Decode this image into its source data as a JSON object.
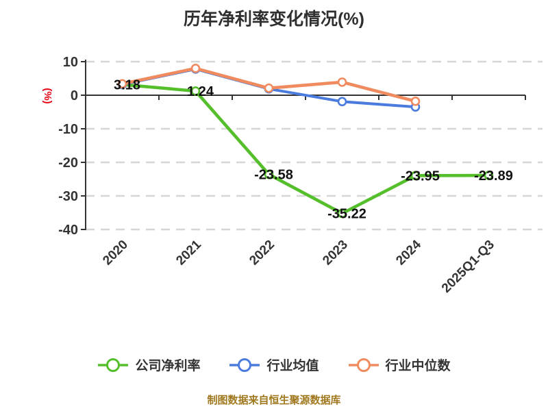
{
  "chart_data": {
    "type": "line",
    "title": "历年净利率变化情况(%)",
    "y_axis_name": "(%)",
    "source_note": "制图数据来自恒生聚源数据库",
    "categories": [
      "2020",
      "2021",
      "2022",
      "2023",
      "2024",
      "2025Q1-Q3"
    ],
    "series": [
      {
        "id": "company-net-margin",
        "name": "公司净利率",
        "color": "#55be2b",
        "line_width": 4.6,
        "values": [
          3.18,
          1.24,
          -23.58,
          -35.22,
          -23.95,
          -23.89
        ],
        "data_labels": [
          "3.18",
          "1.24",
          "-23.58",
          "-35.22",
          "-23.95",
          "-23.89"
        ]
      },
      {
        "id": "industry-average",
        "name": "行业均值",
        "color": "#4a7bdd",
        "line_width": 4.0,
        "values": [
          3.2,
          7.8,
          1.9,
          -1.9,
          -3.5,
          null
        ],
        "data_labels": null
      },
      {
        "id": "industry-median",
        "name": "行业中位数",
        "color": "#f08a5f",
        "line_width": 4.6,
        "values": [
          3.4,
          8.0,
          2.1,
          3.9,
          -1.8,
          null
        ],
        "data_labels": null
      }
    ],
    "ylim": [
      -40,
      10
    ],
    "y_ticks": [
      10,
      0,
      -10,
      -20,
      -30,
      -40
    ],
    "grid": "horizontal-dashed",
    "legend_position": "bottom",
    "marker": "circle-white-fill",
    "colors": {
      "title_text": "#2f2f2f",
      "axis_text": "#333333",
      "axis_line": "#333333",
      "grid_line": "#d6d6d6",
      "data_label": "#111111",
      "marker_fill": "#ffffff",
      "y_axis_name": "#e60012",
      "source_note": "#a0781e"
    }
  }
}
